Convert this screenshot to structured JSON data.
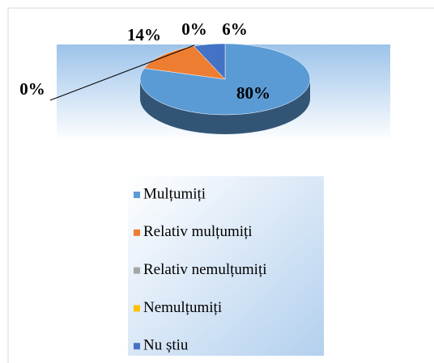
{
  "chart_data": {
    "type": "pie3d",
    "categories": [
      "Mulțumiți",
      "Relativ mulțumiți",
      "Relativ nemulțumiți",
      "Nemulțumiți",
      "Nu știu"
    ],
    "values": [
      80,
      14,
      0,
      0,
      6
    ],
    "value_labels": [
      "80%",
      "14%",
      "0%",
      "0%",
      "6%"
    ],
    "colors": [
      "#5b9bd5",
      "#ed7d31",
      "#a5a5a5",
      "#ffc000",
      "#4472c4"
    ],
    "legend": "bottom"
  }
}
